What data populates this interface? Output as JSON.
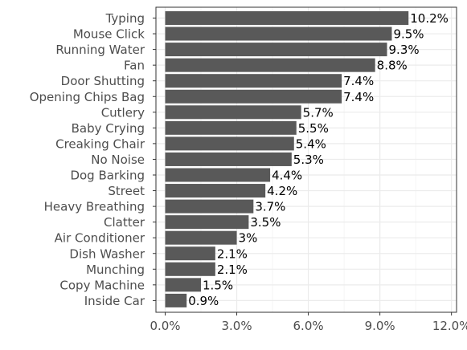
{
  "chart_data": {
    "type": "bar",
    "orientation": "horizontal",
    "categories": [
      "Typing",
      "Mouse Click",
      "Running Water",
      "Fan",
      "Door Shutting",
      "Opening Chips Bag",
      "Cutlery",
      "Baby Crying",
      "Creaking Chair",
      "No Noise",
      "Dog Barking",
      "Street",
      "Heavy Breathing",
      "Clatter",
      "Air Conditioner",
      "Dish Washer",
      "Munching",
      "Copy Machine",
      "Inside Car"
    ],
    "values": [
      10.2,
      9.5,
      9.3,
      8.8,
      7.4,
      7.4,
      5.7,
      5.5,
      5.4,
      5.3,
      4.4,
      4.2,
      3.7,
      3.5,
      3.0,
      2.1,
      2.1,
      1.5,
      0.9
    ],
    "data_labels": [
      "10.2%",
      "9.5%",
      "9.3%",
      "8.8%",
      "7.4%",
      "7.4%",
      "5.7%",
      "5.5%",
      "5.4%",
      "5.3%",
      "4.4%",
      "4.2%",
      "3.7%",
      "3.5%",
      "3%",
      "2.1%",
      "2.1%",
      "1.5%",
      "0.9%"
    ],
    "x_ticks": [
      0,
      3,
      6,
      9,
      12
    ],
    "x_tick_labels": [
      "0.0%",
      "3.0%",
      "6.0%",
      "9.0%",
      "12.0%"
    ],
    "xlim": [
      0,
      12
    ],
    "title": "",
    "xlabel": "",
    "ylabel": "",
    "grid": true,
    "legend": "none",
    "colors": {
      "bar": "#595959",
      "panel_border": "#333333",
      "grid_major": "#ebebeb",
      "grid_minor": "#f5f5f5"
    }
  }
}
